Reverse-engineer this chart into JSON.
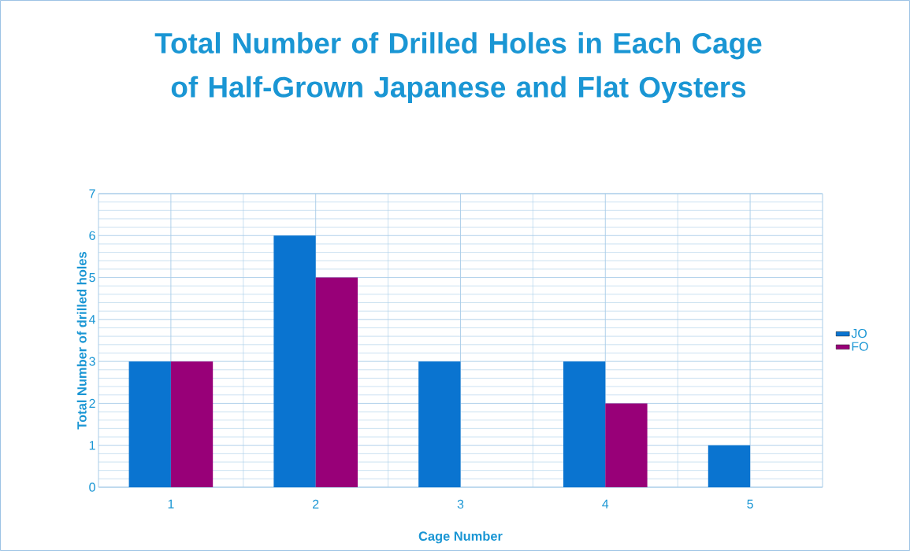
{
  "chart_data": {
    "type": "bar",
    "title": "Total Number of Drilled Holes in Each Cage of Half-Grown Japanese and Flat Oysters",
    "xlabel": "Cage Number",
    "ylabel": "Total Number of drilled holes",
    "categories": [
      "1",
      "2",
      "3",
      "4",
      "5"
    ],
    "series": [
      {
        "name": "JO",
        "color": "#0a74d0",
        "values": [
          3,
          6,
          3,
          3,
          1
        ]
      },
      {
        "name": "FO",
        "color": "#980078",
        "values": [
          3,
          5,
          0,
          2,
          0
        ]
      }
    ],
    "ylim": [
      0,
      7
    ],
    "yticks": [
      0,
      1,
      2,
      3,
      4,
      5,
      6,
      7
    ],
    "grid": true,
    "legend": "right"
  }
}
